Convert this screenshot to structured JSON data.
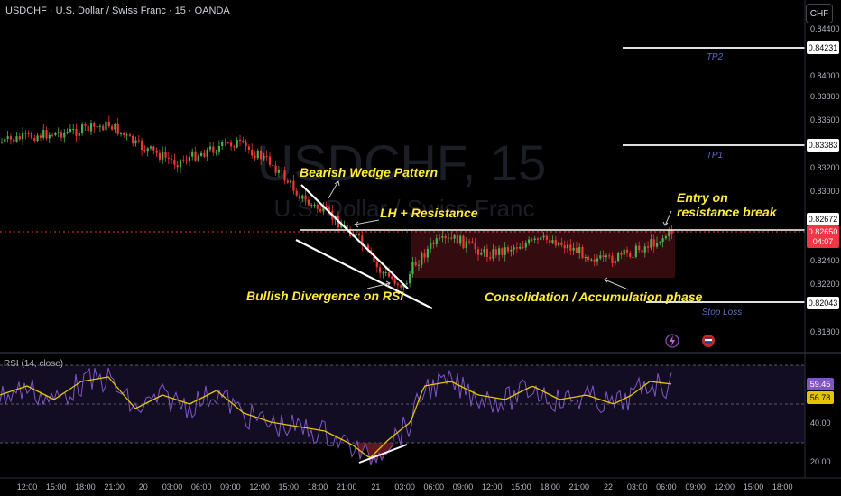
{
  "header": {
    "title": "USDCHF · U.S. Dollar / Swiss Franc · 15 · OANDA",
    "currency_button": "CHF"
  },
  "watermark": {
    "symbol": "USDCHF, 15",
    "name": "U.S. Dollar / Swiss Franc"
  },
  "price_axis": {
    "ticks": [
      "0.84400",
      "0.84000",
      "0.83800",
      "0.83600",
      "0.83200",
      "0.83000",
      "0.82400",
      "0.82200",
      "0.81800"
    ],
    "labels": {
      "tp2": "0.84231",
      "tp1": "0.83383",
      "resistance": "0.82672",
      "current_price": "0.82650",
      "countdown": "04:07",
      "stop_loss": "0.82043"
    }
  },
  "annotations": {
    "bearish_wedge": "Bearish Wedge Pattern",
    "lh_resistance": "LH + Resistance",
    "bullish_divergence": "Bullish Divergence on RSI",
    "consolidation": "Consolidation / Accumulation phase",
    "entry_line1": "Entry on",
    "entry_line2": "resistance break",
    "tp1": "TP1",
    "tp2": "TP2",
    "stop_loss": "Stop Loss"
  },
  "rsi": {
    "label": "RSI (14, close)",
    "value": "59.45",
    "ma_value": "56.78",
    "ticks": [
      "40.00",
      "20.00"
    ]
  },
  "time_axis": [
    "12:00",
    "15:00",
    "18:00",
    "21:00",
    "20",
    "03:00",
    "06:00",
    "09:00",
    "12:00",
    "15:00",
    "18:00",
    "21:00",
    "21",
    "03:00",
    "06:00",
    "09:00",
    "12:00",
    "15:00",
    "18:00",
    "21:00",
    "22",
    "03:00",
    "06:00",
    "09:00",
    "12:00",
    "15:00",
    "18:00"
  ],
  "icons": {
    "flash": "flash-icon",
    "flag": "flag-icon"
  },
  "colors": {
    "bull": "#26a69a",
    "bull_candle": "#4caf50",
    "bear": "#ef3535",
    "rsi": "#7e57c2",
    "rsi_ma": "#e5c300",
    "annotation": "#ffeb3b",
    "target": "#5c6bc0"
  }
}
